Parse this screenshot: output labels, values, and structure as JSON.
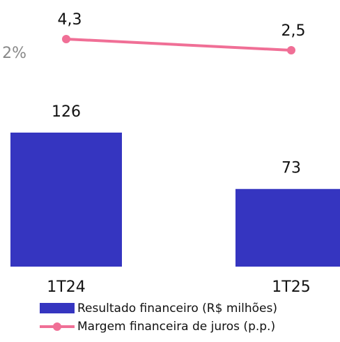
{
  "chart_data": {
    "type": "bar",
    "annotation": "2%",
    "categories": [
      "1T24",
      "1T25"
    ],
    "series": [
      {
        "name": "Resultado financeiro (R$ milhões)",
        "type": "bar",
        "color": "#3535c0",
        "values": [
          126,
          73
        ]
      },
      {
        "name": "Margem financeira de juros (p.p.)",
        "type": "line",
        "color": "#f06f96",
        "values": [
          4.3,
          2.5
        ],
        "value_labels": [
          "4,3",
          "2,5"
        ]
      }
    ]
  }
}
